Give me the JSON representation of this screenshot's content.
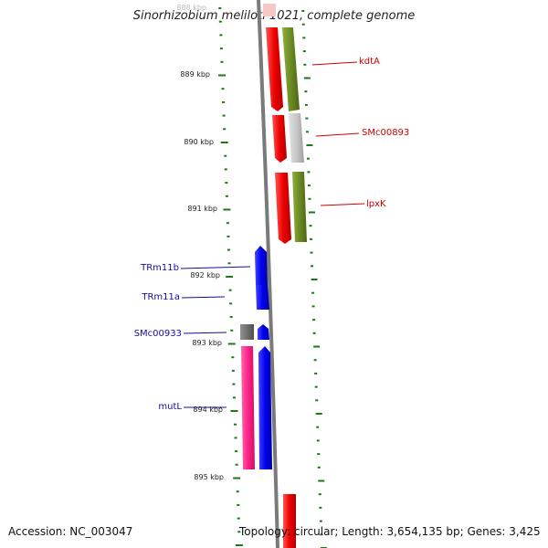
{
  "title": "Sinorhizobium meliloti 1021, complete genome",
  "footer": {
    "accession": "Accession: NC_003047",
    "topology": "Topology: circular; Length: 3,654,135 bp; Genes: 3,425"
  },
  "colors": {
    "backbone": "#808080",
    "tick": "#1a7a1a",
    "cds_red": "#ee0000",
    "cds_olive": "#6b8a23",
    "cds_gray": "#c8c8c8",
    "cds_blue": "#0000ee",
    "cds_pink": "#ff2288",
    "cds_darkgray": "#707070",
    "label_red": "#cc0000",
    "label_blue": "#1010a0"
  },
  "ticks": [
    {
      "label": "888 kbp"
    },
    {
      "label": "889 kbp"
    },
    {
      "label": "890 kbp"
    },
    {
      "label": "891 kbp"
    },
    {
      "label": "892 kbp"
    },
    {
      "label": "893 kbp"
    },
    {
      "label": "894 kbp"
    },
    {
      "label": "895 kbp"
    }
  ],
  "genes": [
    {
      "name": "kdtA",
      "side": "right"
    },
    {
      "name": "SMc00893",
      "side": "right"
    },
    {
      "name": "lpxK",
      "side": "right"
    },
    {
      "name": "TRm11b",
      "side": "left"
    },
    {
      "name": "TRm11a",
      "side": "left"
    },
    {
      "name": "SMc00933",
      "side": "left"
    },
    {
      "name": "mutL",
      "side": "left"
    }
  ]
}
